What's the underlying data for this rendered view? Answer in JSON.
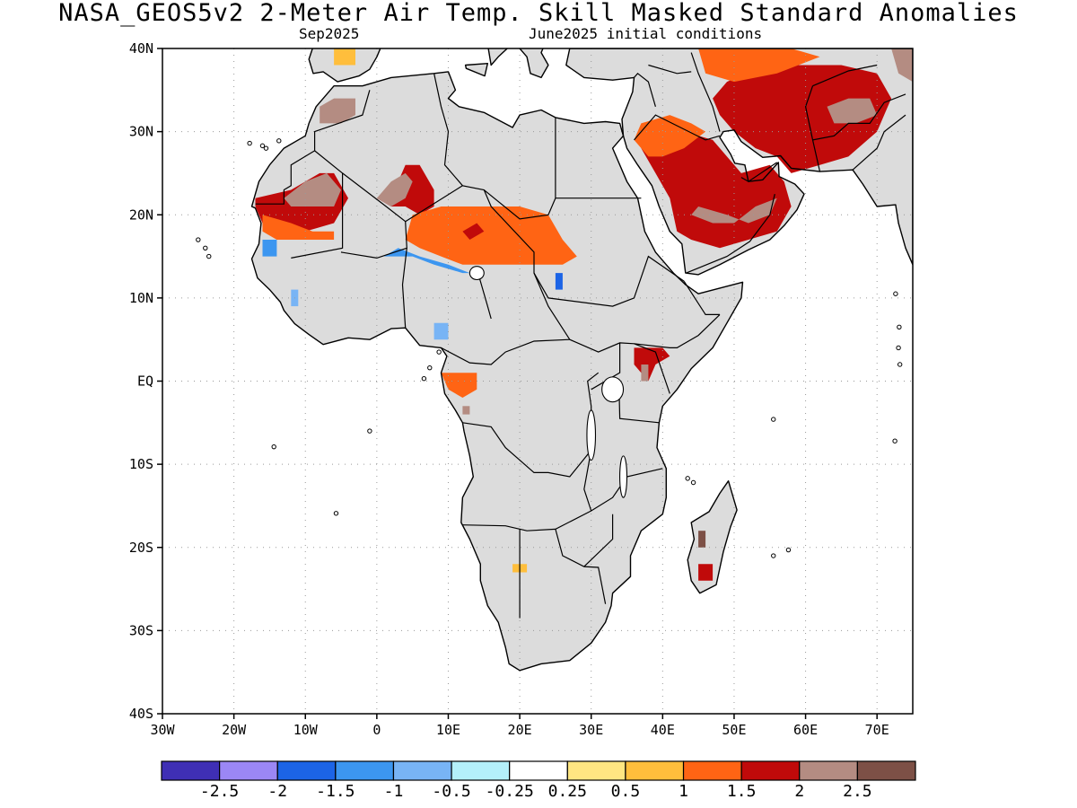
{
  "title": "NASA_GEOS5v2 2-Meter Air Temp. Skill Masked Standard Anomalies",
  "subtitle_left": "Sep2025",
  "subtitle_right": "June2025 initial conditions",
  "map": {
    "lon_range": [
      -30,
      75
    ],
    "lat_range": [
      -40,
      40
    ],
    "lat_ticks": [
      {
        "value": 40,
        "label": "40N"
      },
      {
        "value": 30,
        "label": "30N"
      },
      {
        "value": 20,
        "label": "20N"
      },
      {
        "value": 10,
        "label": "10N"
      },
      {
        "value": 0,
        "label": "EQ"
      },
      {
        "value": -10,
        "label": "10S"
      },
      {
        "value": -20,
        "label": "20S"
      },
      {
        "value": -30,
        "label": "30S"
      },
      {
        "value": -40,
        "label": "40S"
      }
    ],
    "lon_ticks": [
      {
        "value": -30,
        "label": "30W"
      },
      {
        "value": -20,
        "label": "20W"
      },
      {
        "value": -10,
        "label": "10W"
      },
      {
        "value": 0,
        "label": "0"
      },
      {
        "value": 10,
        "label": "10E"
      },
      {
        "value": 20,
        "label": "20E"
      },
      {
        "value": 30,
        "label": "30E"
      },
      {
        "value": 40,
        "label": "40E"
      },
      {
        "value": 50,
        "label": "50E"
      },
      {
        "value": 60,
        "label": "60E"
      },
      {
        "value": 70,
        "label": "70E"
      }
    ],
    "grid": true,
    "masked_color": "#dcdcdc",
    "regions": [
      {
        "name": "Arabia",
        "level": 1.5,
        "poly": [
          [
            38,
            30
          ],
          [
            43,
            30
          ],
          [
            47,
            29
          ],
          [
            49,
            27
          ],
          [
            51,
            25
          ],
          [
            55,
            26
          ],
          [
            57,
            24
          ],
          [
            58,
            21
          ],
          [
            56,
            18
          ],
          [
            52,
            17
          ],
          [
            48,
            16
          ],
          [
            44,
            17
          ],
          [
            42,
            18
          ],
          [
            41,
            22
          ],
          [
            39,
            25
          ],
          [
            37,
            28
          ]
        ]
      },
      {
        "name": "Arabia core",
        "level": 2.0,
        "poly": [
          [
            45,
            21
          ],
          [
            49,
            20
          ],
          [
            52,
            19
          ],
          [
            55,
            20
          ],
          [
            56,
            22
          ],
          [
            53,
            21
          ],
          [
            50,
            19
          ],
          [
            47,
            19
          ],
          [
            44,
            20
          ]
        ]
      },
      {
        "name": "Arabia edge",
        "level": 1.0,
        "poly": [
          [
            37,
            31
          ],
          [
            41,
            32
          ],
          [
            44,
            31
          ],
          [
            46,
            30
          ],
          [
            43,
            28
          ],
          [
            40,
            27
          ],
          [
            38,
            27
          ],
          [
            36,
            29
          ]
        ]
      },
      {
        "name": "Iran",
        "level": 1.5,
        "poly": [
          [
            49,
            36
          ],
          [
            54,
            38
          ],
          [
            60,
            38
          ],
          [
            65,
            38
          ],
          [
            70,
            37
          ],
          [
            72,
            34
          ],
          [
            70,
            30
          ],
          [
            66,
            27
          ],
          [
            62,
            26
          ],
          [
            58,
            25
          ],
          [
            56,
            27
          ],
          [
            53,
            28
          ],
          [
            50,
            30
          ],
          [
            48,
            32
          ],
          [
            47,
            34
          ]
        ]
      },
      {
        "name": "Iran north",
        "level": 1.0,
        "poly": [
          [
            45,
            40
          ],
          [
            52,
            40
          ],
          [
            58,
            40
          ],
          [
            62,
            39
          ],
          [
            56,
            37
          ],
          [
            50,
            36
          ],
          [
            46,
            37
          ]
        ]
      },
      {
        "name": "Afghanistan core",
        "level": 2.0,
        "poly": [
          [
            63,
            33
          ],
          [
            66,
            34
          ],
          [
            69,
            34
          ],
          [
            70,
            32
          ],
          [
            67,
            31
          ],
          [
            64,
            31
          ]
        ]
      },
      {
        "name": "Caspian south",
        "level": 2.0,
        "poly": [
          [
            72,
            40
          ],
          [
            75,
            40
          ],
          [
            75,
            36
          ],
          [
            73,
            37
          ]
        ]
      },
      {
        "name": "Mauritania",
        "level": 1.5,
        "poly": [
          [
            -17,
            22
          ],
          [
            -12,
            23
          ],
          [
            -8,
            25
          ],
          [
            -6,
            25
          ],
          [
            -4,
            22
          ],
          [
            -6,
            19
          ],
          [
            -10,
            18
          ],
          [
            -14,
            18
          ],
          [
            -16,
            19
          ],
          [
            -17,
            21
          ]
        ]
      },
      {
        "name": "Mauritania core",
        "level": 2.0,
        "poly": [
          [
            -13,
            22
          ],
          [
            -10,
            24
          ],
          [
            -7,
            25
          ],
          [
            -5,
            23
          ],
          [
            -6,
            21
          ],
          [
            -9,
            21
          ],
          [
            -12,
            21
          ]
        ]
      },
      {
        "name": "Mauritania south",
        "level": 1.0,
        "poly": [
          [
            -16,
            20
          ],
          [
            -12,
            19
          ],
          [
            -9,
            18
          ],
          [
            -6,
            18
          ],
          [
            -6,
            17
          ],
          [
            -10,
            17
          ],
          [
            -14,
            17
          ],
          [
            -16,
            18
          ]
        ]
      },
      {
        "name": "Algeria south",
        "level": 1.5,
        "poly": [
          [
            0,
            22
          ],
          [
            3,
            24
          ],
          [
            4,
            26
          ],
          [
            6,
            26
          ],
          [
            8,
            23
          ],
          [
            8,
            21
          ],
          [
            6,
            20
          ],
          [
            4,
            21
          ],
          [
            2,
            21
          ]
        ]
      },
      {
        "name": "Algeria south core",
        "level": 2.0,
        "poly": [
          [
            0,
            22
          ],
          [
            2,
            24
          ],
          [
            4,
            25
          ],
          [
            5,
            24
          ],
          [
            4,
            22
          ],
          [
            2,
            21
          ]
        ]
      },
      {
        "name": "Morocco",
        "level": 2.0,
        "poly": [
          [
            -8,
            33
          ],
          [
            -6,
            34
          ],
          [
            -3,
            34
          ],
          [
            -3,
            32
          ],
          [
            -5,
            31
          ],
          [
            -8,
            31
          ]
        ]
      },
      {
        "name": "Sahel",
        "level": 1.0,
        "poly": [
          [
            5,
            20
          ],
          [
            9,
            21
          ],
          [
            12,
            21
          ],
          [
            16,
            21
          ],
          [
            20,
            21
          ],
          [
            24,
            20
          ],
          [
            26,
            17
          ],
          [
            28,
            15
          ],
          [
            26,
            14
          ],
          [
            22,
            14
          ],
          [
            18,
            14
          ],
          [
            14,
            14
          ],
          [
            12,
            14
          ],
          [
            9,
            15
          ],
          [
            6,
            16
          ],
          [
            4,
            17
          ]
        ]
      },
      {
        "name": "Sahel blue",
        "level": -1.5,
        "poly": [
          [
            1,
            15
          ],
          [
            5,
            15
          ],
          [
            8,
            14
          ],
          [
            12,
            13
          ],
          [
            13,
            13
          ],
          [
            10,
            14
          ],
          [
            6,
            15
          ],
          [
            3,
            16
          ]
        ]
      },
      {
        "name": "Chad spot",
        "level": 1.5,
        "poly": [
          [
            12,
            18
          ],
          [
            14,
            19
          ],
          [
            15,
            18
          ],
          [
            13,
            17
          ]
        ]
      },
      {
        "name": "Kenya",
        "level": 1.5,
        "poly": [
          [
            36,
            4
          ],
          [
            38,
            4
          ],
          [
            40,
            4
          ],
          [
            41,
            3
          ],
          [
            39,
            2
          ],
          [
            38,
            0
          ],
          [
            37,
            1
          ],
          [
            36,
            2
          ]
        ]
      },
      {
        "name": "Kenya red",
        "level": 2.0,
        "poly": [
          [
            37,
            2
          ],
          [
            38,
            2
          ],
          [
            38,
            0
          ],
          [
            37,
            0
          ]
        ]
      },
      {
        "name": "Gabon",
        "level": 1.0,
        "poly": [
          [
            9,
            1
          ],
          [
            12,
            1
          ],
          [
            14,
            1
          ],
          [
            14,
            -1
          ],
          [
            12,
            -2
          ],
          [
            10,
            -1
          ]
        ]
      },
      {
        "name": "Gabon red",
        "level": 2.0,
        "poly": [
          [
            12,
            -3
          ],
          [
            13,
            -3
          ],
          [
            13,
            -4
          ],
          [
            12,
            -4
          ]
        ]
      },
      {
        "name": "Madagascar",
        "level": 1.5,
        "poly": [
          [
            45,
            -22
          ],
          [
            47,
            -22
          ],
          [
            47,
            -24
          ],
          [
            45,
            -24
          ]
        ]
      },
      {
        "name": "Madagascar spot",
        "level": 2.5,
        "poly": [
          [
            45,
            -18
          ],
          [
            46,
            -18
          ],
          [
            46,
            -20
          ],
          [
            45,
            -20
          ]
        ]
      },
      {
        "name": "Botswana spot",
        "level": 0.5,
        "poly": [
          [
            19,
            -22
          ],
          [
            21,
            -22
          ],
          [
            21,
            -23
          ],
          [
            19,
            -23
          ]
        ]
      },
      {
        "name": "Guinea blue",
        "level": -1.0,
        "poly": [
          [
            -12,
            11
          ],
          [
            -11,
            11
          ],
          [
            -11,
            9
          ],
          [
            -12,
            9
          ]
        ]
      },
      {
        "name": "Senegal blue",
        "level": -1.5,
        "poly": [
          [
            -16,
            17
          ],
          [
            -14,
            17
          ],
          [
            -14,
            15
          ],
          [
            -16,
            15
          ]
        ]
      },
      {
        "name": "Sudan purple",
        "level": -2.0,
        "poly": [
          [
            25,
            13
          ],
          [
            26,
            13
          ],
          [
            26,
            11
          ],
          [
            25,
            11
          ]
        ]
      },
      {
        "name": "Cameroon blue",
        "level": -1.0,
        "poly": [
          [
            8,
            7
          ],
          [
            10,
            7
          ],
          [
            10,
            5
          ],
          [
            8,
            5
          ]
        ]
      },
      {
        "name": "Tunisia north",
        "level": 0.5,
        "poly": [
          [
            -6,
            40
          ],
          [
            -3,
            40
          ],
          [
            -3,
            38
          ],
          [
            -6,
            38
          ]
        ]
      }
    ]
  },
  "colorbar": {
    "colors": [
      "#3f2fb5",
      "#9b87f5",
      "#1c64e6",
      "#3c96f0",
      "#78b4f5",
      "#b4f0fa",
      "#ffffff",
      "#ffe682",
      "#ffbe3c",
      "#ff6414",
      "#c00a0a",
      "#b48c82",
      "#7d5046"
    ],
    "labels": [
      "-2.5",
      "-2",
      "-1.5",
      "-1",
      "-0.5",
      "-0.25",
      "0.25",
      "0.5",
      "1",
      "1.5",
      "2",
      "2.5"
    ],
    "bounds": [
      -2.5,
      -2,
      -1.5,
      -1,
      -0.5,
      -0.25,
      0.25,
      0.5,
      1,
      1.5,
      2,
      2.5
    ]
  }
}
